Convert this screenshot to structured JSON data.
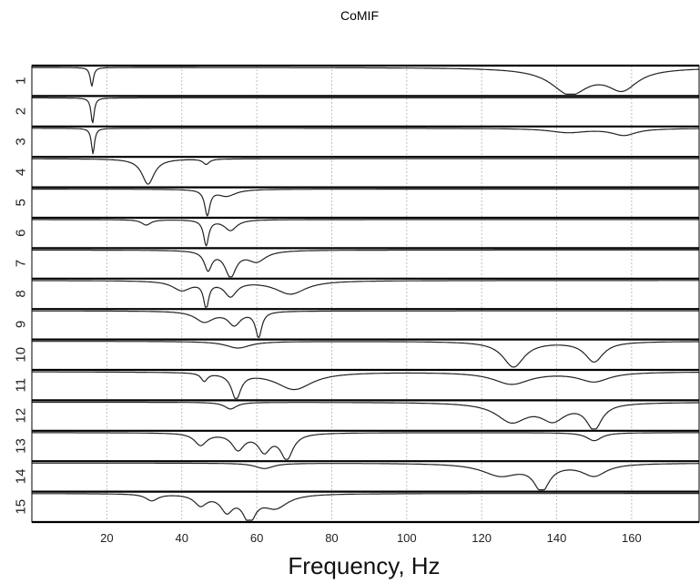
{
  "chart_data": {
    "type": "line",
    "title": "CoMIF",
    "xlabel": "Frequency, Hz",
    "ylabel": "",
    "xlim": [
      0,
      178
    ],
    "x_ticks": [
      20,
      40,
      60,
      80,
      100,
      120,
      140,
      160
    ],
    "x_tick_labels": [
      "20",
      "40",
      "60",
      "80",
      "100",
      "120",
      "140",
      "160"
    ],
    "grid": true,
    "rows": [
      "1",
      "2",
      "3",
      "4",
      "5",
      "6",
      "7",
      "8",
      "9",
      "10",
      "11",
      "12",
      "13",
      "14",
      "15"
    ],
    "series": [
      {
        "row": "1",
        "dips": [
          [
            16,
            0.5,
            0.7
          ],
          [
            143.5,
            6,
            0.95
          ],
          [
            157.5,
            5,
            0.75
          ]
        ]
      },
      {
        "row": "2",
        "dips": [
          [
            16.2,
            0.5,
            0.95
          ]
        ]
      },
      {
        "row": "3",
        "dips": [
          [
            16.3,
            0.5,
            0.95
          ],
          [
            143,
            6,
            0.15
          ],
          [
            158,
            4,
            0.25
          ]
        ]
      },
      {
        "row": "4",
        "dips": [
          [
            31,
            2,
            0.95
          ],
          [
            46.5,
            1,
            0.2
          ]
        ]
      },
      {
        "row": "5",
        "dips": [
          [
            46.8,
            0.8,
            0.95
          ],
          [
            52,
            3,
            0.25
          ]
        ]
      },
      {
        "row": "6",
        "dips": [
          [
            30.5,
            1.5,
            0.2
          ],
          [
            46.5,
            0.8,
            0.95
          ],
          [
            53,
            2,
            0.4
          ]
        ]
      },
      {
        "row": "7",
        "dips": [
          [
            47,
            1.2,
            0.7
          ],
          [
            53,
            1.8,
            0.95
          ],
          [
            60,
            3,
            0.4
          ]
        ]
      },
      {
        "row": "8",
        "dips": [
          [
            40,
            3,
            0.35
          ],
          [
            46.5,
            0.8,
            0.95
          ],
          [
            53,
            2,
            0.55
          ],
          [
            69,
            5,
            0.5
          ]
        ]
      },
      {
        "row": "9",
        "dips": [
          [
            46,
            3,
            0.4
          ],
          [
            54,
            2,
            0.5
          ],
          [
            60.5,
            1,
            0.95
          ]
        ]
      },
      {
        "row": "10",
        "dips": [
          [
            55,
            4,
            0.25
          ],
          [
            128.5,
            3.5,
            0.95
          ],
          [
            150,
            3,
            0.75
          ]
        ]
      },
      {
        "row": "11",
        "dips": [
          [
            46,
            1,
            0.3
          ],
          [
            54.5,
            1.5,
            0.95
          ],
          [
            70,
            6,
            0.65
          ],
          [
            128,
            6,
            0.45
          ],
          [
            150,
            5,
            0.35
          ]
        ]
      },
      {
        "row": "12",
        "dips": [
          [
            53,
            2,
            0.25
          ],
          [
            128,
            5,
            0.7
          ],
          [
            139,
            4,
            0.6
          ],
          [
            150,
            2.5,
            0.95
          ]
        ]
      },
      {
        "row": "13",
        "dips": [
          [
            45,
            2,
            0.45
          ],
          [
            55,
            2,
            0.6
          ],
          [
            62,
            2,
            0.65
          ],
          [
            68,
            2,
            0.95
          ],
          [
            150,
            2.5,
            0.3
          ]
        ]
      },
      {
        "row": "14",
        "dips": [
          [
            62,
            3,
            0.2
          ],
          [
            125,
            6,
            0.45
          ],
          [
            136,
            2.5,
            0.95
          ],
          [
            150,
            4,
            0.45
          ]
        ]
      },
      {
        "row": "15",
        "dips": [
          [
            32,
            2,
            0.25
          ],
          [
            45,
            2,
            0.4
          ],
          [
            52,
            2,
            0.6
          ],
          [
            58,
            2,
            0.95
          ],
          [
            65,
            4,
            0.5
          ]
        ]
      }
    ]
  }
}
